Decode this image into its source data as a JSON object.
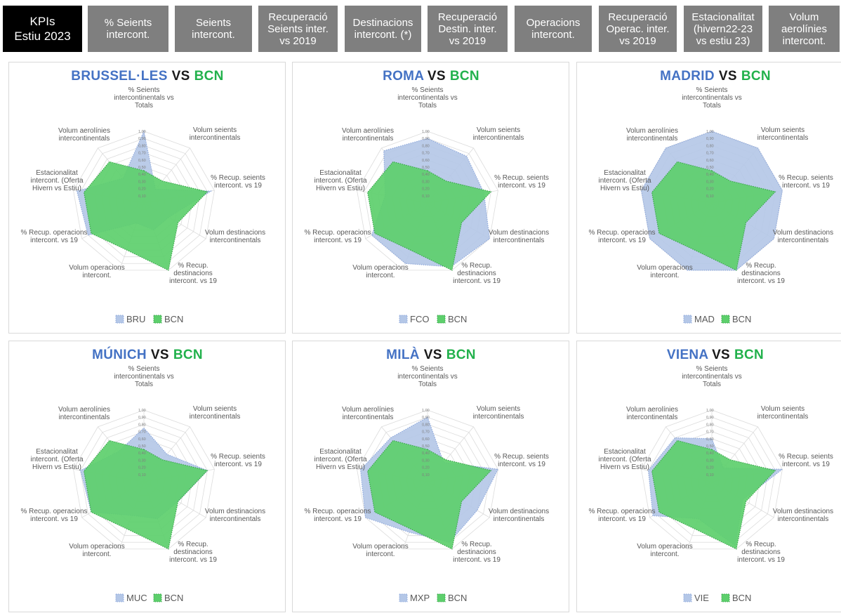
{
  "tabs": [
    {
      "label": "KPIs\nEstiu 2023",
      "active": true
    },
    {
      "label": "% Seients\nintercont.",
      "active": false
    },
    {
      "label": "Seients\nintercont.",
      "active": false
    },
    {
      "label": "Recuperació\nSeients inter.\nvs 2019",
      "active": false
    },
    {
      "label": "Destinacions\nintercont. (*)",
      "active": false
    },
    {
      "label": "Recuperació\nDestin. inter.\nvs 2019",
      "active": false
    },
    {
      "label": "Operacions\nintercont.",
      "active": false
    },
    {
      "label": "Recuperació\nOperac. inter.\nvs 2019",
      "active": false
    },
    {
      "label": "Estacionalitat\n(hivern22-23\nvs estiu 23)",
      "active": false
    },
    {
      "label": "Volum\naerolínies\nintercont.",
      "active": false
    }
  ],
  "colors": {
    "title_blue": "#4472c4",
    "title_green": "#22b14c",
    "compare_fill": "#b4c7e7",
    "compare_stroke": "#8fa9dc",
    "bcn_fill": "#5dcf6c",
    "bcn_stroke": "#3aa64b"
  },
  "chart_data": [
    {
      "type": "radar",
      "title": {
        "city": "BRUSSEL·LES",
        "vs": "VS",
        "base": "BCN"
      },
      "axes": [
        "% Seients\nintercontinentals vs\nTotals",
        "Volum seients\nintercontinentals",
        "% Recup. seients\nintercont. vs 19",
        "Volum destinacions\nintercontinentals",
        "% Recup.\ndestinacions\nintercont. vs 19",
        "Volum operacions\nintercont.",
        "% Recup. operacions\nintercont. vs 19",
        "Estacionalitat\nintercont. (Oferta\nHivern vs Estiu)",
        "Volum aerolínies\nintercontinentals"
      ],
      "ticks": [
        "1,00",
        "0,90",
        "0,80",
        "0,70",
        "0,60",
        "0,50",
        "0,40",
        "0,30",
        "0,20",
        "0,10"
      ],
      "series": [
        {
          "name": "BRU",
          "values": [
            1.0,
            0.25,
            0.95,
            0.4,
            0.4,
            0.3,
            0.9,
            0.95,
            0.45
          ]
        },
        {
          "name": "BCN",
          "values": [
            0.45,
            0.4,
            0.9,
            0.55,
            1.0,
            0.7,
            0.85,
            0.85,
            0.75
          ]
        }
      ]
    },
    {
      "type": "radar",
      "title": {
        "city": "ROMA",
        "vs": "VS",
        "base": "BCN"
      },
      "axes": [
        "% Seients\nintercontinentals vs\nTotals",
        "Volum seients\nintercontinentals",
        "% Recup. seients\nintercont. vs 19",
        "Volum destinacions\nintercontinentals",
        "% Recup.\ndestinacions\nintercont. vs 19",
        "Volum operacions\nintercont.",
        "% Recup. operacions\nintercont. vs 19",
        "Estacionalitat\nintercont. (Oferta\nHivern vs Estiu)",
        "Volum aerolínies\nintercontinentals"
      ],
      "ticks": [
        "1,00",
        "0,90",
        "0,80",
        "0,70",
        "0,60",
        "0,50",
        "0,40",
        "0,30",
        "0,20",
        "0,10"
      ],
      "series": [
        {
          "name": "FCO",
          "values": [
            0.9,
            0.85,
            0.8,
            1.0,
            0.95,
            0.9,
            0.9,
            0.6,
            0.95
          ]
        },
        {
          "name": "BCN",
          "values": [
            0.45,
            0.4,
            0.9,
            0.55,
            1.0,
            0.7,
            0.85,
            0.85,
            0.75
          ]
        }
      ]
    },
    {
      "type": "radar",
      "title": {
        "city": "MADRID",
        "vs": "VS",
        "base": "BCN"
      },
      "axes": [
        "% Seients\nintercontinentals vs\nTotals",
        "Volum seients\nintercontinentals",
        "% Recup. seients\nintercont. vs 19",
        "Volum destinacions\nintercontinentals",
        "% Recup.\ndestinacions\nintercont. vs 19",
        "Volum operacions\nintercont.",
        "% Recup. operacions\nintercont. vs 19",
        "Estacionalitat\nintercont. (Oferta\nHivern vs Estiu)",
        "Volum aerolínies\nintercontinentals"
      ],
      "ticks": [
        "1,00",
        "0,90",
        "0,80",
        "0,70",
        "0,60",
        "0,50",
        "0,40",
        "0,30",
        "0,20",
        "0,10"
      ],
      "series": [
        {
          "name": "MAD",
          "values": [
            1.0,
            1.0,
            1.0,
            1.0,
            1.0,
            1.0,
            1.0,
            1.0,
            1.0
          ]
        },
        {
          "name": "BCN",
          "values": [
            0.45,
            0.4,
            0.9,
            0.55,
            1.0,
            0.7,
            0.85,
            0.85,
            0.75
          ]
        }
      ]
    },
    {
      "type": "radar",
      "title": {
        "city": "MÚNICH",
        "vs": "VS",
        "base": "BCN"
      },
      "axes": [
        "% Seients\nintercontinentals vs\nTotals",
        "Volum seients\nintercontinentals",
        "% Recup. seients\nintercont. vs 19",
        "Volum destinacions\nintercontinentals",
        "% Recup.\ndestinacions\nintercont. vs 19",
        "Volum operacions\nintercont.",
        "% Recup. operacions\nintercont. vs 19",
        "Estacionalitat\nintercont. (Oferta\nHivern vs Estiu)",
        "Volum aerolínies\nintercontinentals"
      ],
      "ticks": [
        "1,00",
        "0,90",
        "0,80",
        "0,70",
        "0,60",
        "0,50",
        "0,40",
        "0,30",
        "0,20",
        "0,10"
      ],
      "series": [
        {
          "name": "MUC",
          "values": [
            0.75,
            0.5,
            0.9,
            0.55,
            0.55,
            0.5,
            0.85,
            0.9,
            0.55
          ]
        },
        {
          "name": "BCN",
          "values": [
            0.45,
            0.4,
            0.9,
            0.55,
            1.0,
            0.7,
            0.85,
            0.85,
            0.75
          ]
        }
      ]
    },
    {
      "type": "radar",
      "title": {
        "city": "MILÀ",
        "vs": "VS",
        "base": "BCN"
      },
      "axes": [
        "% Seients\nintercontinentals vs\nTotals",
        "Volum seients\nintercontinentals",
        "% Recup. seients\nintercont. vs 19",
        "Volum destinacions\nintercontinentals",
        "% Recup.\ndestinacions\nintercont. vs 19",
        "Volum operacions\nintercont.",
        "% Recup. operacions\nintercont. vs 19",
        "Estacionalitat\nintercont. (Oferta\nHivern vs Estiu)",
        "Volum aerolínies\nintercontinentals"
      ],
      "ticks": [
        "1,00",
        "0,90",
        "0,80",
        "0,70",
        "0,60",
        "0,50",
        "0,40",
        "0,30",
        "0,20",
        "0,10"
      ],
      "series": [
        {
          "name": "MXP",
          "values": [
            0.9,
            0.35,
            1.0,
            0.8,
            0.9,
            0.75,
            1.0,
            0.95,
            0.8
          ]
        },
        {
          "name": "BCN",
          "values": [
            0.45,
            0.4,
            0.9,
            0.55,
            1.0,
            0.7,
            0.85,
            0.85,
            0.75
          ]
        }
      ]
    },
    {
      "type": "radar",
      "title": {
        "city": "VIENA",
        "vs": "VS",
        "base": "BCN"
      },
      "axes": [
        "% Seients\nintercontinentals vs\nTotals",
        "Volum seients\nintercontinentals",
        "% Recup. seients\nintercont. vs 19",
        "Volum destinacions\nintercontinentals",
        "% Recup.\ndestinacions\nintercont. vs 19",
        "Volum operacions\nintercont.",
        "% Recup. operacions\nintercont. vs 19",
        "Estacionalitat\nintercont. (Oferta\nHivern vs Estiu)",
        "Volum aerolínies\nintercontinentals"
      ],
      "ticks": [
        "1,00",
        "0,90",
        "0,80",
        "0,70",
        "0,60",
        "0,50",
        "0,40",
        "0,30",
        "0,20",
        "0,10"
      ],
      "series": [
        {
          "name": "VIE",
          "values": [
            0.6,
            0.25,
            1.0,
            0.5,
            0.95,
            0.55,
            0.95,
            0.9,
            0.8
          ]
        },
        {
          "name": "BCN",
          "values": [
            0.45,
            0.4,
            0.9,
            0.55,
            1.0,
            0.7,
            0.85,
            0.85,
            0.75
          ]
        }
      ]
    }
  ]
}
